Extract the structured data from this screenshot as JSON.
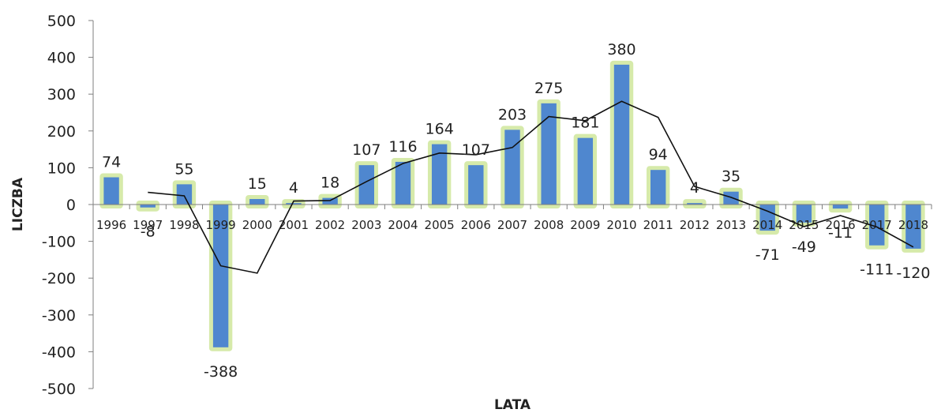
{
  "chart_data": {
    "type": "bar",
    "xlabel": "LATA",
    "ylabel": "LICZBA",
    "ylim": [
      -500,
      500
    ],
    "yticks": [
      500,
      400,
      300,
      200,
      100,
      0,
      -100,
      -200,
      -300,
      -400,
      -500
    ],
    "grid": false,
    "legend": "none",
    "categories": [
      "1996",
      "1997",
      "1998",
      "1999",
      "2000",
      "2001",
      "2002",
      "2003",
      "2004",
      "2005",
      "2006",
      "2007",
      "2008",
      "2009",
      "2010",
      "2011",
      "2012",
      "2013",
      "2014",
      "2015",
      "2016",
      "2017",
      "2018"
    ],
    "values": [
      74,
      -8,
      55,
      -388,
      15,
      4,
      18,
      107,
      116,
      164,
      107,
      203,
      275,
      181,
      380,
      94,
      4,
      35,
      -71,
      -49,
      -11,
      -111,
      -120
    ],
    "trend_line": {
      "type": "moving-average",
      "period": 2,
      "values": [
        null,
        33,
        23.5,
        -166.5,
        -186.5,
        9.5,
        11,
        62.5,
        111.5,
        140,
        135.5,
        155,
        239,
        228,
        280.5,
        237,
        49,
        19.5,
        -18,
        -60,
        -30,
        -61,
        -115.5
      ]
    },
    "colors": {
      "bar": "#4f87cf",
      "bar_glow": "#c8e38e",
      "trend": "#111111",
      "axis": "#7f7f7f"
    }
  }
}
